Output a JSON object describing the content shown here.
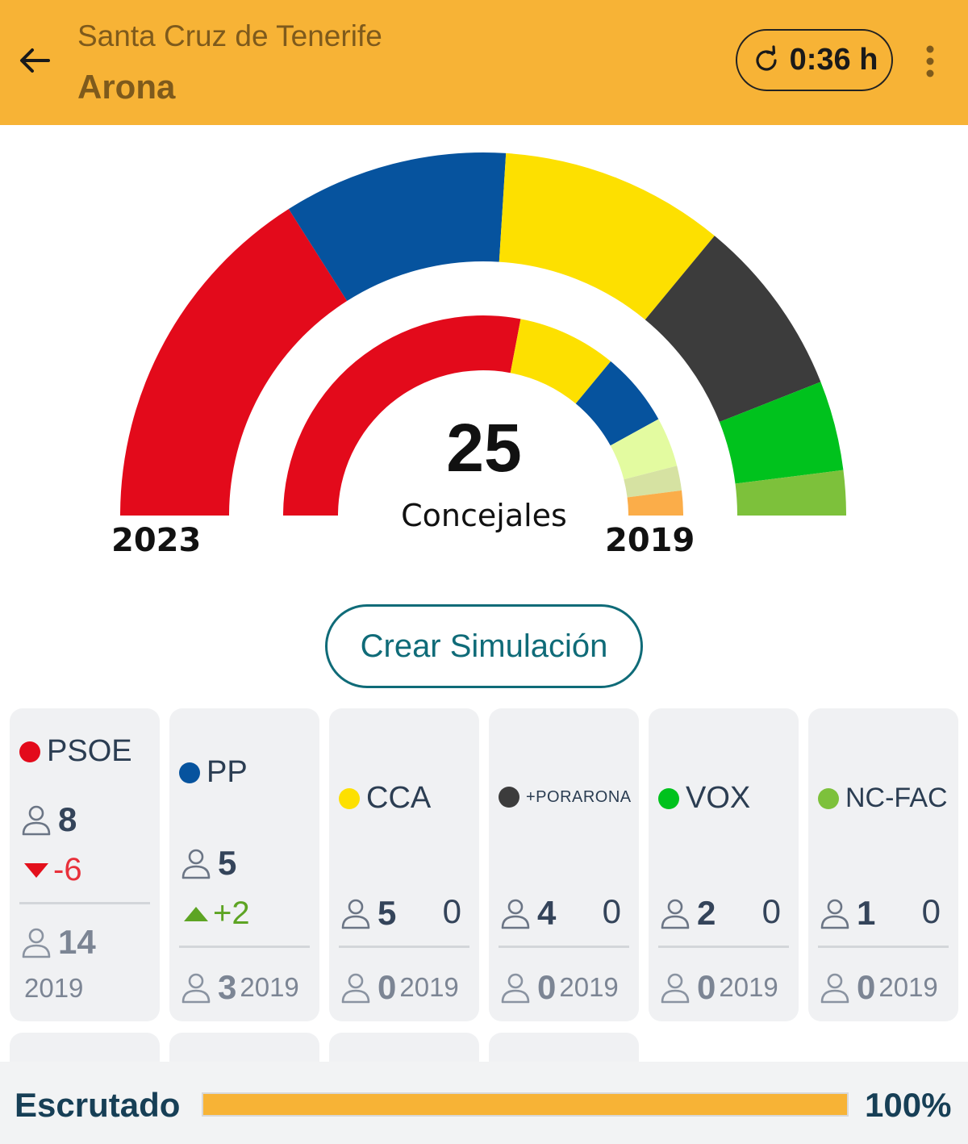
{
  "header": {
    "province": "Santa Cruz de Tenerife",
    "municipality": "Arona",
    "refresh_time": "0:36 h",
    "icons": [
      "back-arrow-icon",
      "refresh-icon",
      "more-vert-icon"
    ]
  },
  "parliament": {
    "total_seats": "25",
    "seats_label": "Concejales",
    "outer_year": "2023",
    "inner_year": "2019",
    "outer_arc": [
      {
        "party": "PSOE",
        "seats": 8,
        "color": "#e30a1b"
      },
      {
        "party": "PP",
        "seats": 5,
        "color": "#06539e"
      },
      {
        "party": "CCA",
        "seats": 5,
        "color": "#fde000"
      },
      {
        "party": "+PORARONA",
        "seats": 4,
        "color": "#3c3c3c"
      },
      {
        "party": "VOX",
        "seats": 2,
        "color": "#00c21d"
      },
      {
        "party": "NC-FAC",
        "seats": 1,
        "color": "#7dc13b"
      }
    ],
    "inner_arc": [
      {
        "seats": 14,
        "color": "#e30a1b"
      },
      {
        "seats": 4,
        "color": "#fde000"
      },
      {
        "seats": 3,
        "color": "#06539e"
      },
      {
        "seats": 2,
        "color": "#e3fba0"
      },
      {
        "seats": 1,
        "color": "#d6e2a2"
      },
      {
        "seats": 1,
        "color": "#fbad49"
      }
    ]
  },
  "simulation_button": "Crear Simulación",
  "party_cards": [
    {
      "name": "PSOE",
      "color": "#e30a1b",
      "seats": "8",
      "change": "-6",
      "change_dir": "down",
      "prev_seats": "14",
      "prev_year": "2019"
    },
    {
      "name": "PP",
      "color": "#06539e",
      "seats": "5",
      "change": "+2",
      "change_dir": "up",
      "prev_seats": "3",
      "prev_year": "2019"
    },
    {
      "name": "CCA",
      "color": "#fde000",
      "seats": "5",
      "change": "0",
      "change_dir": "none",
      "prev_seats": "0",
      "prev_year": "2019"
    },
    {
      "name": "+PORARONA",
      "color": "#3c3c3c",
      "seats": "4",
      "change": "0",
      "change_dir": "none",
      "prev_seats": "0",
      "prev_year": "2019"
    },
    {
      "name": "VOX",
      "color": "#00c21d",
      "seats": "2",
      "change": "0",
      "change_dir": "none",
      "prev_seats": "0",
      "prev_year": "2019"
    },
    {
      "name": "NC-FAC",
      "color": "#7dc13b",
      "seats": "1",
      "change": "0",
      "change_dir": "none",
      "prev_seats": "0",
      "prev_year": "2019"
    }
  ],
  "footer": {
    "label": "Escrutado",
    "value": "100%",
    "progress": 1.0
  }
}
